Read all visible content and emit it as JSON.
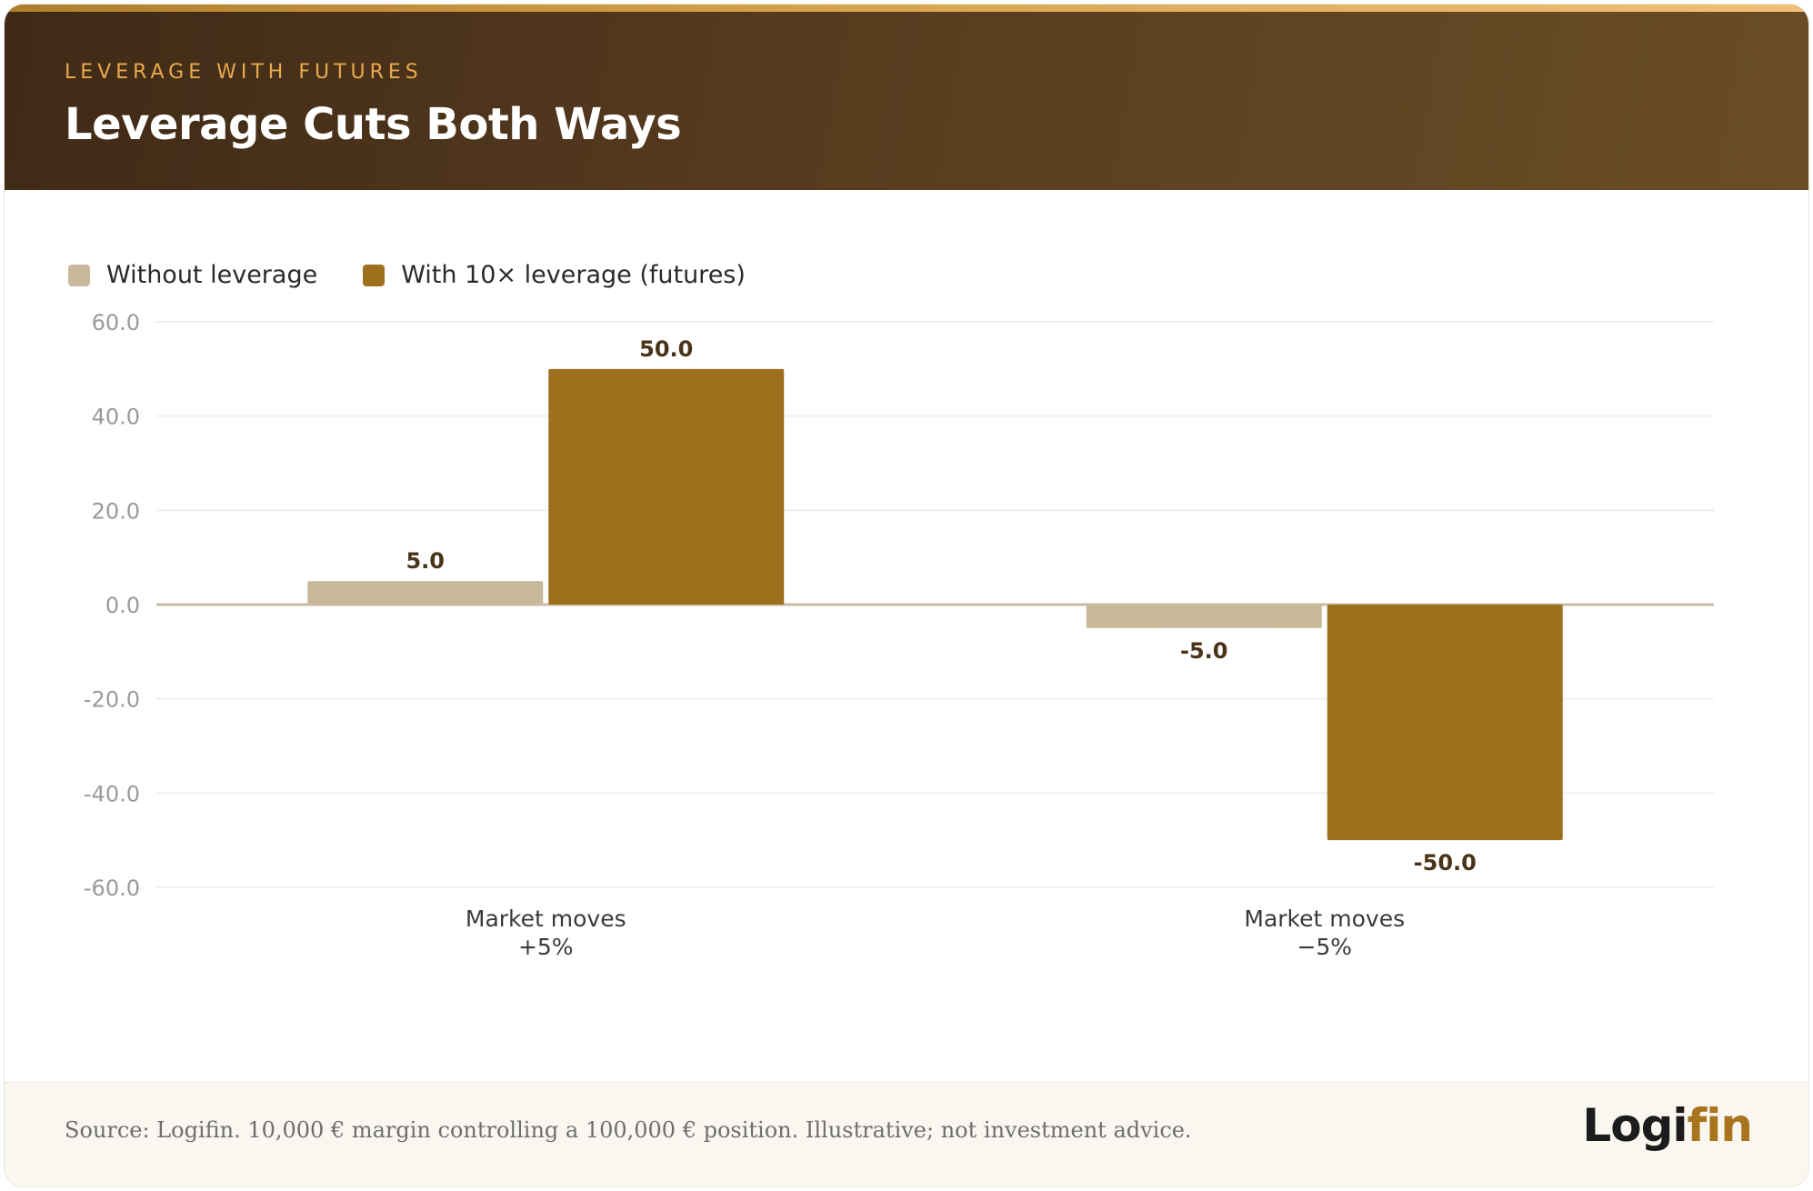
{
  "header": {
    "eyebrow": "LEVERAGE WITH FUTURES",
    "title": "Leverage Cuts Both Ways"
  },
  "legend": {
    "items": [
      {
        "label": "Without leverage",
        "color": "#c9b99b"
      },
      {
        "label": "With 10× leverage (futures)",
        "color": "#9e701d"
      }
    ]
  },
  "chart_data": {
    "type": "bar",
    "categories": [
      [
        "Market moves",
        "+5%"
      ],
      [
        "Market moves",
        "−5%"
      ]
    ],
    "series": [
      {
        "name": "Without leverage",
        "values": [
          5.0,
          -5.0
        ],
        "color": "#c9b99b"
      },
      {
        "name": "With 10× leverage (futures)",
        "values": [
          50.0,
          -50.0
        ],
        "color": "#9e701d"
      }
    ],
    "value_labels": [
      [
        "5.0",
        "-5.0"
      ],
      [
        "50.0",
        "-50.0"
      ]
    ],
    "ylim": [
      -60,
      60
    ],
    "yticks": [
      60,
      40,
      20,
      0,
      -20,
      -40,
      -60
    ],
    "ytick_labels": [
      "60.0",
      "40.0",
      "20.0",
      "0.0",
      "-20.0",
      "-40.0",
      "-60.0"
    ],
    "grid": true,
    "legend_position": "top-left"
  },
  "footer": {
    "source": "Source: Logifin. 10,000 € margin controlling a 100,000 € position. Illustrative; not investment advice.",
    "brand_a": "Logi",
    "brand_b": "fin"
  }
}
